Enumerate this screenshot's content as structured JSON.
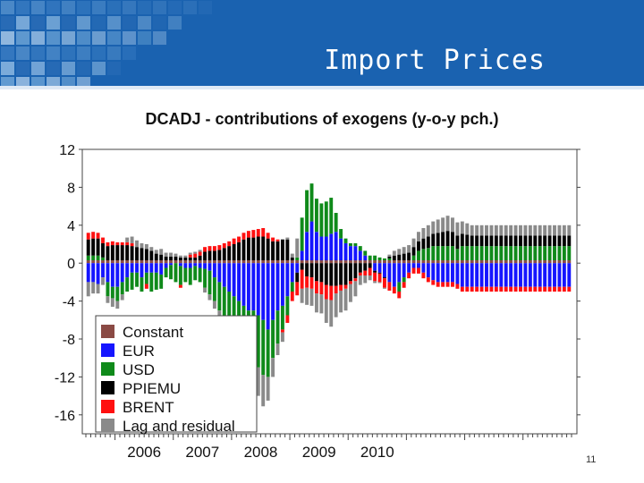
{
  "slide": {
    "title": "Import Prices",
    "page_number": "11"
  },
  "colors": {
    "header": "#1a62b0",
    "Constant": "#8a4a44",
    "EUR": "#1515ff",
    "USD": "#0f8a1a",
    "PPIEMU": "#000000",
    "BRENT": "#ff1010",
    "Lag and residual": "#8a8a8a"
  },
  "chart_data": {
    "type": "bar",
    "stacked": true,
    "title": "DCADJ - contributions of exogens (y-o-y pch.)",
    "xlabel": "",
    "ylabel": "",
    "ylim": [
      -18,
      12
    ],
    "yticks": [
      "12",
      "8",
      "4",
      "0",
      "-4",
      "-8",
      "-12",
      "-16"
    ],
    "year_labels": [
      "2006",
      "2007",
      "2008",
      "2009",
      "2010"
    ],
    "legend": [
      "Constant",
      "EUR",
      "USD",
      "PPIEMU",
      "BRENT",
      "Lag and residual"
    ],
    "frequency": "monthly",
    "start": "2005-07",
    "series": [
      {
        "name": "Constant",
        "values": [
          0.3,
          0.3,
          0.3,
          0.3,
          0.3,
          0.3,
          0.3,
          0.3,
          0.3,
          0.3,
          0.3,
          0.3,
          0.3,
          0.3,
          0.3,
          0.3,
          0.3,
          0.3,
          0.3,
          0.3,
          0.3,
          0.3,
          0.3,
          0.3,
          0.3,
          0.3,
          0.3,
          0.3,
          0.3,
          0.3,
          0.3,
          0.3,
          0.3,
          0.3,
          0.3,
          0.3,
          0.3,
          0.3,
          0.3,
          0.3,
          0.3,
          0.3,
          0.3,
          0.3,
          0.3,
          0.3,
          0.3,
          0.3,
          0.3,
          0.3,
          0.3,
          0.3,
          0.3,
          0.3,
          0.3,
          0.3,
          0.3,
          0.3,
          0.3,
          0.3,
          0.3,
          0.3,
          0.3,
          0.3,
          0.3,
          0.3,
          0.3,
          0.3,
          0.3,
          0.3,
          0.3,
          0.3,
          0.3,
          0.3,
          0.3,
          0.3,
          0.3,
          0.3,
          0.3,
          0.3,
          0.3,
          0.3,
          0.3,
          0.3,
          0.3,
          0.3,
          0.3,
          0.3,
          0.3,
          0.3,
          0.3,
          0.3,
          0.3,
          0.3,
          0.3,
          0.3,
          0.3,
          0.3,
          0.3,
          0.3
        ]
      },
      {
        "name": "EUR",
        "values": [
          -2,
          -2,
          -2.2,
          -1.5,
          -2,
          -2.5,
          -2.5,
          -2,
          -1.5,
          -1,
          -1,
          -1.5,
          -1,
          -1,
          -1,
          -1.2,
          -0.5,
          -0.2,
          0,
          -0.3,
          -0.5,
          -0.5,
          -0.3,
          -0.5,
          -0.6,
          -0.8,
          -1.5,
          -2,
          -2.5,
          -3,
          -3.5,
          -4,
          -4.5,
          -5,
          -5,
          -5.5,
          -6,
          -7,
          -6,
          -5,
          -4.5,
          -3.5,
          -2,
          -1,
          1,
          3,
          4.1,
          3,
          2.5,
          2.5,
          2.8,
          3,
          2.3,
          1.8,
          1.5,
          1.5,
          1,
          0.5,
          0,
          -0.8,
          -1,
          -1.5,
          -2,
          -2.5,
          -2,
          -1.5,
          -1,
          -0.5,
          -0.5,
          -1,
          -1.5,
          -1.8,
          -2,
          -2,
          -2,
          -2,
          -2.2,
          -2.5,
          -2.5,
          -2.5,
          -2.5,
          -2.5,
          -2.5,
          -2.5,
          -2.5,
          -2.5,
          -2.5,
          -2.5,
          -2.5,
          -2.5,
          -2.5,
          -2.5,
          -2.5,
          -2.5,
          -2.5,
          -2.5,
          -2.5,
          -2.5,
          -2.5,
          -2.5
        ]
      },
      {
        "name": "USD",
        "values": [
          0.5,
          0.5,
          0.5,
          0.3,
          -1.5,
          -1.2,
          -1.5,
          -1.3,
          -1.5,
          -1.8,
          -1.5,
          -1.5,
          -1.2,
          -2,
          -1.8,
          -1.5,
          -1,
          -1.5,
          -2,
          -2,
          -1.5,
          -1.8,
          -1.5,
          -1.5,
          -2,
          -2.5,
          -2.5,
          -3,
          -3.5,
          -4,
          -4.5,
          -5,
          -5,
          -5,
          -5.2,
          -5.5,
          -5.8,
          -5,
          -4,
          -3.5,
          -2.5,
          -2,
          -1,
          0.3,
          3.5,
          4.4,
          4,
          3.5,
          3.5,
          3.7,
          3.8,
          2,
          1,
          0.5,
          0.3,
          0.3,
          0.5,
          0.5,
          0.5,
          0.5,
          0.3,
          0.2,
          0.2,
          0,
          -1,
          -0.5,
          0,
          0.5,
          1,
          1.2,
          1.3,
          1.5,
          1.5,
          1.5,
          1.5,
          1.5,
          1.2,
          1.5,
          1.5,
          1.5,
          1.5,
          1.5,
          1.5,
          1.5,
          1.5,
          1.5,
          1.5,
          1.5,
          1.5,
          1.5,
          1.5,
          1.5,
          1.5,
          1.5,
          1.5,
          1.5,
          1.5,
          1.5,
          1.5,
          1.5
        ]
      },
      {
        "name": "PPIEMU",
        "values": [
          1.7,
          1.8,
          1.8,
          1.5,
          1.5,
          1.6,
          1.6,
          1.6,
          1.6,
          1.5,
          1.4,
          1.3,
          1.2,
          1,
          0.7,
          0.6,
          0.4,
          0.4,
          0.4,
          0.3,
          0.3,
          0.3,
          0.3,
          0.5,
          0.9,
          1,
          1,
          1.1,
          1.3,
          1.5,
          1.7,
          1.9,
          2.2,
          2.4,
          2.4,
          2.5,
          2.5,
          2.3,
          2,
          2,
          2.2,
          2.2,
          0.3,
          -1,
          -0.7,
          -1.4,
          -1.5,
          -1.9,
          -2,
          -2.3,
          -2.4,
          -2.4,
          -2.3,
          -2.3,
          -1.9,
          -1.6,
          -1,
          -0.8,
          -0.5,
          -0.2,
          -0.1,
          -0.1,
          0.2,
          0.5,
          0.6,
          0.7,
          0.8,
          0.9,
          1,
          1.1,
          1.2,
          1.3,
          1.4,
          1.5,
          1.6,
          1.5,
          1.4,
          1.3,
          1.2,
          1.1,
          1.1,
          1.1,
          1.1,
          1.1,
          1.1,
          1.1,
          1.1,
          1.1,
          1.1,
          1.1,
          1.1,
          1.1,
          1.1,
          1.1,
          1.1,
          1.1,
          1.1,
          1.1,
          1.1,
          1.1
        ]
      },
      {
        "name": "BRENT",
        "values": [
          0.7,
          0.7,
          0.6,
          0.6,
          0.4,
          0.4,
          0.3,
          0.3,
          0.3,
          0.3,
          0,
          0,
          -0.5,
          0,
          0,
          0,
          0,
          0,
          0,
          -0.3,
          0,
          0.3,
          0.4,
          0.4,
          0.5,
          0.5,
          0.5,
          0.5,
          0.5,
          0.5,
          0.6,
          0.6,
          0.7,
          0.7,
          0.8,
          0.8,
          0.9,
          0.6,
          0.4,
          0.2,
          -0.3,
          -0.8,
          -1,
          -1.4,
          -2,
          -1.2,
          -1.2,
          -1.3,
          -1.3,
          -1.5,
          -1.5,
          -0.8,
          -0.6,
          -0.4,
          -0.3,
          -0.3,
          -0.3,
          -0.5,
          -0.8,
          -0.9,
          -0.9,
          -1,
          -0.9,
          -0.7,
          -0.7,
          -0.6,
          -0.6,
          -0.6,
          -0.6,
          -0.6,
          -0.5,
          -0.5,
          -0.5,
          -0.5,
          -0.5,
          -0.5,
          -0.5,
          -0.5,
          -0.5,
          -0.5,
          -0.5,
          -0.5,
          -0.5,
          -0.5,
          -0.5,
          -0.5,
          -0.5,
          -0.5,
          -0.5,
          -0.5,
          -0.5,
          -0.5,
          -0.5,
          -0.5,
          -0.5,
          -0.5,
          -0.5,
          -0.5,
          -0.5,
          -0.5
        ]
      },
      {
        "name": "Lag and residual",
        "values": [
          -1.5,
          -1.2,
          -1,
          -0.8,
          -0.7,
          -0.9,
          -0.8,
          -0.6,
          0.5,
          0.7,
          0.7,
          0.5,
          0.5,
          0.4,
          0.4,
          0.6,
          0.4,
          0.4,
          0.3,
          0.2,
          0.2,
          0.2,
          0.2,
          0.2,
          -0.5,
          -0.6,
          -0.8,
          -1,
          -1.2,
          -1.5,
          -1.5,
          -1.8,
          -2,
          -2,
          -2.5,
          -3,
          -3.3,
          -2.5,
          -2,
          -1.2,
          -1,
          0.2,
          0.4,
          2,
          -1.5,
          -1.8,
          -1.8,
          -2,
          -2,
          -2.5,
          -2.8,
          -2.5,
          -2.3,
          -2.3,
          -1.9,
          -1.6,
          -1,
          -0.8,
          -0.5,
          -0.2,
          -0.1,
          -0.1,
          0.2,
          0.5,
          0.6,
          0.7,
          0.8,
          0.9,
          1,
          1.1,
          1.2,
          1.3,
          1.4,
          1.5,
          1.6,
          1.5,
          1.4,
          1.3,
          1.2,
          1.1,
          1.1,
          1.1,
          1.1,
          1.1,
          1.1,
          1.1,
          1.1,
          1.1,
          1.1,
          1.1,
          1.1,
          1.1,
          1.1,
          1.1,
          1.1,
          1.1,
          1.1,
          1.1,
          1.1,
          1.1
        ]
      }
    ]
  }
}
